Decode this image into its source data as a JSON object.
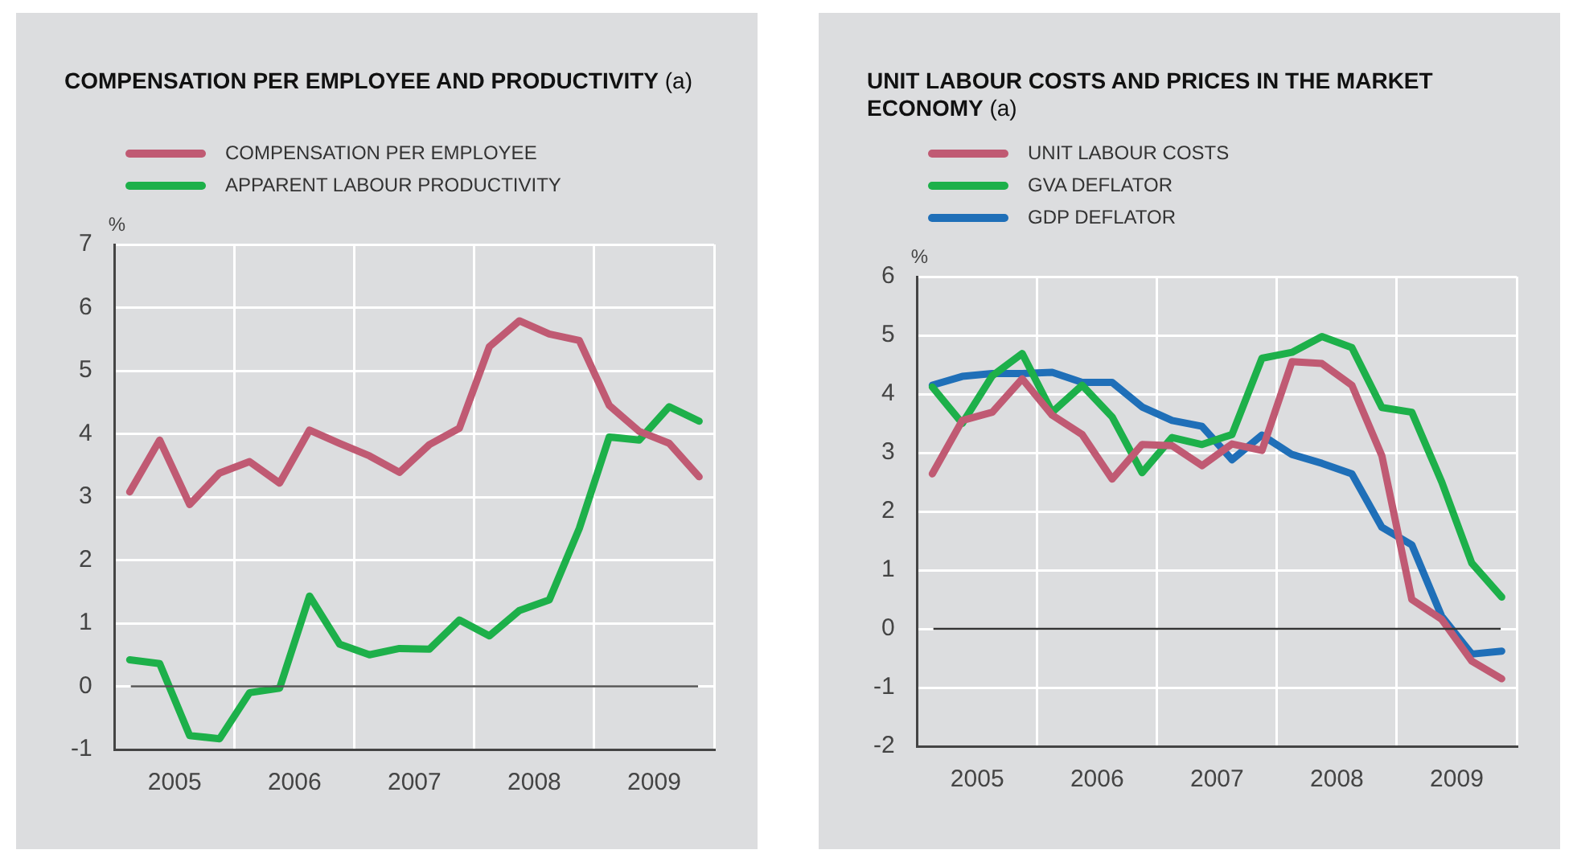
{
  "chart_data": [
    {
      "type": "line",
      "title": "COMPENSATION PER EMPLOYEE AND PRODUCTIVITY (a)",
      "ylabel": "%",
      "x": [
        2005.125,
        2005.375,
        2005.625,
        2005.875,
        2006.125,
        2006.375,
        2006.625,
        2006.875,
        2007.125,
        2007.375,
        2007.625,
        2007.875,
        2008.125,
        2008.375,
        2008.625,
        2008.875,
        2009.125,
        2009.375,
        2009.625,
        2009.875
      ],
      "series": [
        {
          "name": "COMPENSATION PER EMPLOYEE",
          "color": "#c05a73",
          "values": [
            3.08,
            3.9,
            2.88,
            3.38,
            3.56,
            3.22,
            4.06,
            3.85,
            3.65,
            3.39,
            3.83,
            4.09,
            5.38,
            5.79,
            5.58,
            5.48,
            4.45,
            4.04,
            3.85,
            3.32
          ]
        },
        {
          "name": "APPARENT LABOUR PRODUCTIVITY",
          "color": "#1db04a",
          "values": [
            0.42,
            0.36,
            -0.78,
            -0.83,
            -0.1,
            -0.03,
            1.43,
            0.67,
            0.5,
            0.6,
            0.59,
            1.05,
            0.8,
            1.2,
            1.37,
            2.5,
            3.95,
            3.9,
            4.43,
            4.2
          ]
        }
      ],
      "xlim": [
        2005,
        2010
      ],
      "xticks": [
        {
          "value": 2005,
          "label": null
        },
        {
          "value": 2005.5,
          "label": "2005"
        },
        {
          "value": 2006,
          "label": null
        },
        {
          "value": 2006.5,
          "label": "2006"
        },
        {
          "value": 2007,
          "label": null
        },
        {
          "value": 2007.5,
          "label": "2007"
        },
        {
          "value": 2008,
          "label": null
        },
        {
          "value": 2008.5,
          "label": "2008"
        },
        {
          "value": 2009,
          "label": null
        },
        {
          "value": 2009.5,
          "label": "2009"
        },
        {
          "value": 2010,
          "label": null
        }
      ],
      "ylim": [
        -1,
        7
      ],
      "yticks": [
        -1,
        0,
        1,
        2,
        3,
        4,
        5,
        6,
        7
      ],
      "ref_lines": [
        {
          "axis": "y",
          "value": 0,
          "color": "#555555"
        }
      ],
      "grid": true,
      "legend": "top left",
      "marker": "none",
      "line_style": "solid"
    },
    {
      "type": "line",
      "title": "UNIT LABOUR COSTS AND PRICES IN THE MARKET ECONOMY (a)",
      "ylabel": "%",
      "x": [
        2005.125,
        2005.375,
        2005.625,
        2005.875,
        2006.125,
        2006.375,
        2006.625,
        2006.875,
        2007.125,
        2007.375,
        2007.625,
        2007.875,
        2008.125,
        2008.375,
        2008.625,
        2008.875,
        2009.125,
        2009.375,
        2009.625,
        2009.875
      ],
      "series": [
        {
          "name": "UNIT LABOUR COSTS",
          "color": "#c05a73",
          "values": [
            2.64,
            3.55,
            3.69,
            4.26,
            3.64,
            3.31,
            2.55,
            3.14,
            3.12,
            2.78,
            3.15,
            3.04,
            4.55,
            4.52,
            4.15,
            2.95,
            0.5,
            0.16,
            -0.55,
            -0.85
          ]
        },
        {
          "name": "GVA DEFLATOR",
          "color": "#1db04a",
          "values": [
            4.12,
            3.5,
            4.31,
            4.69,
            3.69,
            4.15,
            3.61,
            2.66,
            3.26,
            3.14,
            3.31,
            4.61,
            4.71,
            4.98,
            4.79,
            3.77,
            3.69,
            2.5,
            1.12,
            0.54
          ]
        },
        {
          "name": "GDP DEFLATOR",
          "color": "#1f6fb8",
          "values": [
            4.15,
            4.3,
            4.35,
            4.35,
            4.37,
            4.2,
            4.2,
            3.78,
            3.55,
            3.45,
            2.88,
            3.3,
            2.97,
            2.82,
            2.64,
            1.73,
            1.43,
            0.21,
            -0.43,
            -0.38
          ]
        }
      ],
      "xlim": [
        2005,
        2010
      ],
      "xticks": [
        {
          "value": 2005,
          "label": null
        },
        {
          "value": 2005.5,
          "label": "2005"
        },
        {
          "value": 2006,
          "label": null
        },
        {
          "value": 2006.5,
          "label": "2006"
        },
        {
          "value": 2007,
          "label": null
        },
        {
          "value": 2007.5,
          "label": "2007"
        },
        {
          "value": 2008,
          "label": null
        },
        {
          "value": 2008.5,
          "label": "2008"
        },
        {
          "value": 2009,
          "label": null
        },
        {
          "value": 2009.5,
          "label": "2009"
        },
        {
          "value": 2010,
          "label": null
        }
      ],
      "ylim": [
        -2,
        6
      ],
      "yticks": [
        -2,
        -1,
        0,
        1,
        2,
        3,
        4,
        5,
        6
      ],
      "ref_lines": [
        {
          "axis": "y",
          "value": 0,
          "color": "#333333"
        }
      ],
      "grid": true,
      "legend": "top left",
      "marker": "none",
      "line_style": "solid"
    }
  ]
}
